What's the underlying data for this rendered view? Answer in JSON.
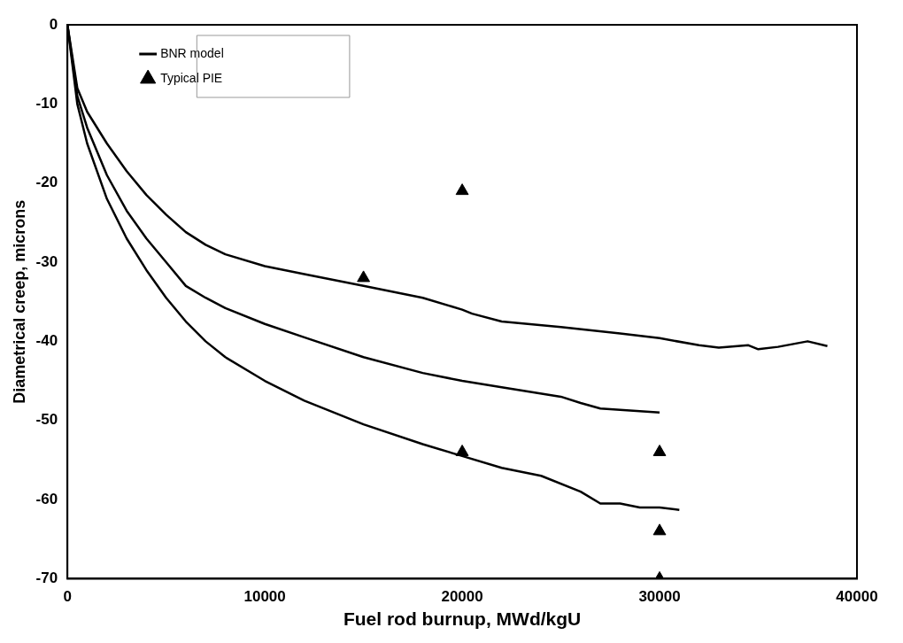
{
  "chart_data": {
    "type": "line",
    "xlabel": "Fuel rod burnup, MWd/kgU",
    "ylabel": "Diametrical creep, microns",
    "xlim": [
      0,
      40000
    ],
    "xticks": [
      0,
      10000,
      20000,
      30000,
      40000
    ],
    "ylim": [
      -70,
      0
    ],
    "yticks": [
      -70,
      -60,
      -50,
      -40,
      -30,
      -20,
      -10,
      0
    ],
    "grid": false,
    "legend": "top left",
    "line_style": "solid",
    "series": [
      {
        "name": "BNR model",
        "type": "line",
        "color": "#000000",
        "marker": "none",
        "x": [
          0,
          500,
          1000,
          2000,
          3000,
          4000,
          5000,
          6000,
          7000,
          8000,
          10000,
          12000,
          15000,
          18000,
          20000,
          20500,
          22000,
          25000,
          28000,
          30000,
          32000,
          33000,
          34500,
          35000,
          36000,
          37500,
          38500
        ],
        "values": [
          0,
          -8,
          -11,
          -15,
          -18.5,
          -21.5,
          -24,
          -26.2,
          -27.8,
          -29,
          -30.5,
          -31.5,
          -33,
          -34.5,
          -36,
          -36.5,
          -37.5,
          -38.2,
          -39,
          -39.6,
          -40.5,
          -40.8,
          -40.5,
          -41,
          -40.7,
          -40,
          -40.6
        ]
      },
      {
        "type": "line",
        "color": "#000000",
        "marker": "none",
        "x": [
          0,
          500,
          1000,
          2000,
          3000,
          4000,
          5000,
          6000,
          7000,
          8000,
          10000,
          12000,
          15000,
          18000,
          20000,
          22000,
          25000,
          26000,
          27000,
          30000
        ],
        "values": [
          0,
          -9,
          -13,
          -19,
          -23.5,
          -27,
          -30,
          -33,
          -34.5,
          -35.8,
          -37.8,
          -39.5,
          -42,
          -44,
          -45,
          -45.8,
          -47,
          -47.8,
          -48.5,
          -49
        ]
      },
      {
        "type": "line",
        "color": "#000000",
        "marker": "none",
        "x": [
          0,
          500,
          1000,
          2000,
          3000,
          4000,
          5000,
          6000,
          7000,
          8000,
          10000,
          12000,
          15000,
          18000,
          20000,
          22000,
          23000,
          24000,
          26000,
          27000,
          28000,
          29000,
          30000,
          31000
        ],
        "values": [
          0,
          -10,
          -15,
          -22,
          -27,
          -31,
          -34.5,
          -37.5,
          -40,
          -42,
          -45,
          -47.5,
          -50.5,
          -53,
          -54.5,
          -56,
          -56.5,
          -57,
          -59,
          -60.5,
          -60.5,
          -61,
          -61,
          -61.3
        ]
      },
      {
        "name": "Typical PIE",
        "type": "scatter",
        "color": "#000000",
        "marker": "triangle",
        "x": [
          15000,
          20000,
          20000,
          30000,
          30000,
          30000
        ],
        "values": [
          -32,
          -21,
          -54,
          -54,
          -64,
          -70
        ]
      }
    ]
  }
}
